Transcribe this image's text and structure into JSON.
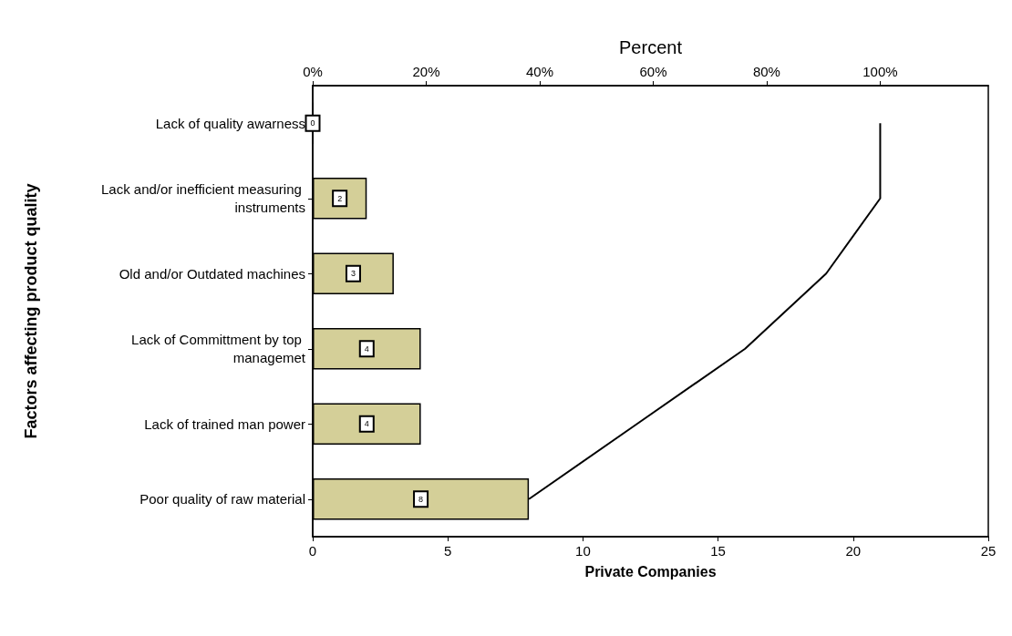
{
  "chart_data": {
    "type": "bar",
    "orientation": "horizontal",
    "xlabel": "Private Companies",
    "ylabel": "Factors affecting product quality",
    "x2label": "Percent",
    "categories": [
      "Lack of quality awarness",
      "Lack and/or inefficient measuring instruments",
      "Old and/or Outdated machines",
      "Lack of Committment by top managemet",
      "Lack of trained man power",
      "Poor quality of raw material"
    ],
    "series": [
      {
        "color": "#d4cf98",
        "values": [
          0,
          2,
          3,
          4,
          4,
          8
        ],
        "value_labels": [
          "0",
          "2",
          "3",
          "4",
          "4",
          "8"
        ]
      },
      {
        "type": "line",
        "color": "#000000",
        "values": [
          21,
          21,
          19,
          16,
          12,
          8
        ]
      }
    ],
    "marker": "none",
    "grid": false,
    "xlim": [
      0,
      25
    ],
    "xticks": [
      0,
      5,
      10,
      15,
      20,
      25
    ],
    "x2lim": [
      0,
      119.05
    ],
    "x2ticks": [
      {
        "value": 0,
        "label": "0%"
      },
      {
        "value": 20,
        "label": "20%"
      },
      {
        "value": 40,
        "label": "40%"
      },
      {
        "value": 60,
        "label": "60%"
      },
      {
        "value": 80,
        "label": "80%"
      },
      {
        "value": 100,
        "label": "100%"
      }
    ]
  }
}
